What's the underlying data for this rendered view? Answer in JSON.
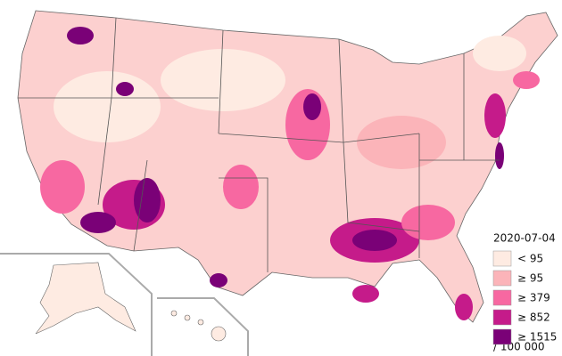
{
  "map": {
    "date": "2020-07-04",
    "legend": [
      {
        "label": "< 95",
        "color": "#feebe2"
      },
      {
        "label": "≥ 95",
        "color": "#fbb4b9"
      },
      {
        "label": "≥ 379",
        "color": "#f768a1"
      },
      {
        "label": "≥ 852",
        "color": "#c51b8a"
      },
      {
        "label": "≥ 1515",
        "color": "#7a0177"
      }
    ],
    "unit": "/ 100 000"
  }
}
